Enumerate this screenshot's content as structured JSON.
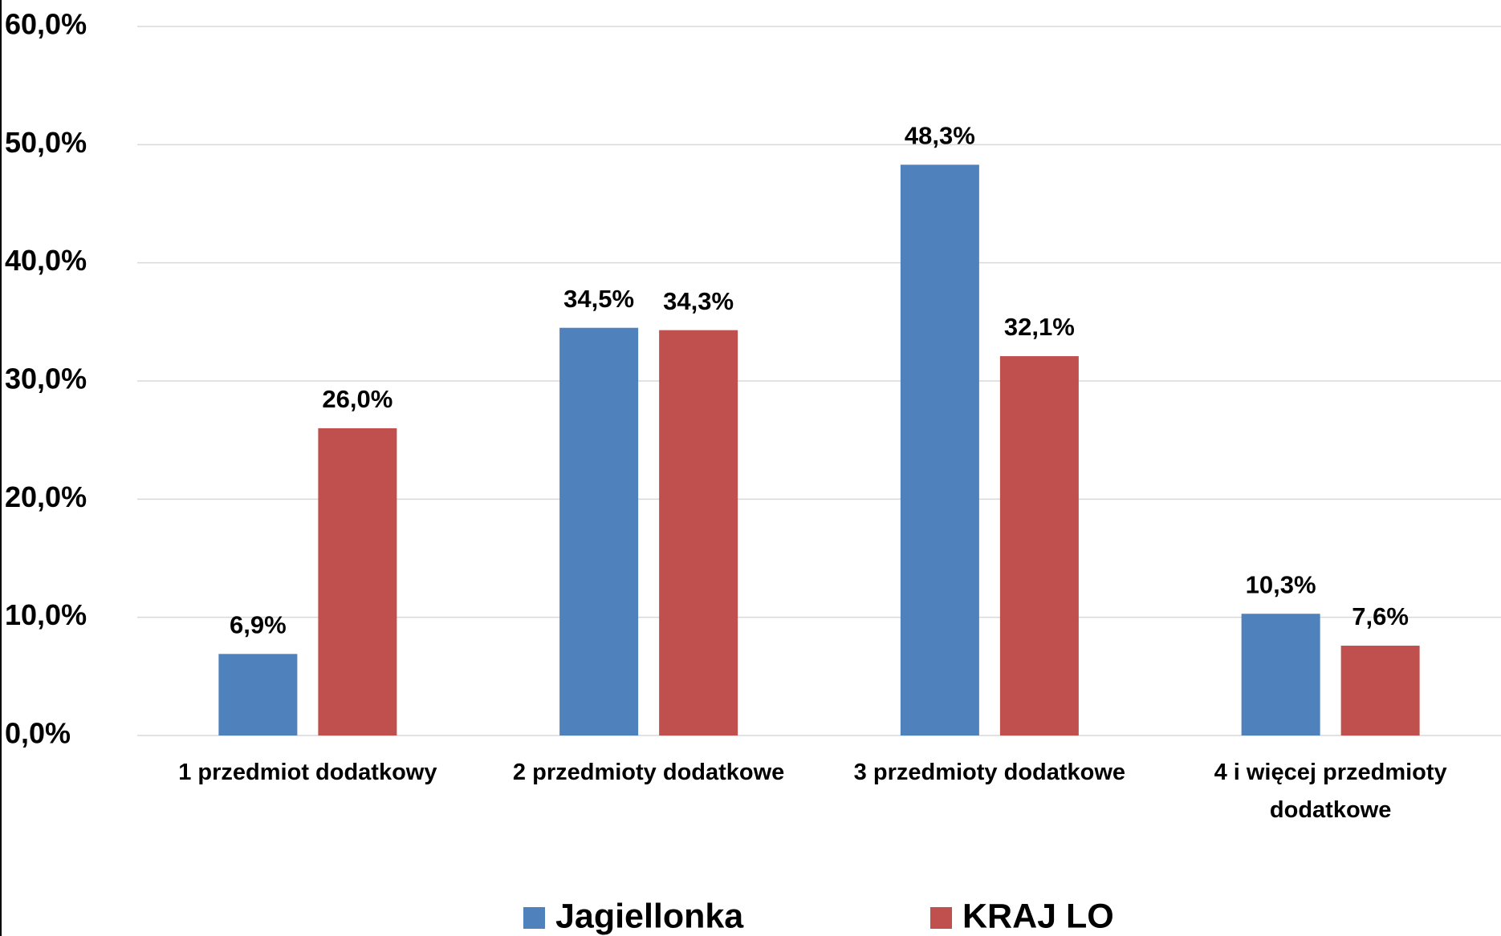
{
  "chart_data": {
    "type": "bar",
    "categories": [
      "1 przedmiot dodatkowy",
      "2 przedmioty dodatkowe",
      "3 przedmioty dodatkowe",
      "4 i więcej przedmioty dodatkowe"
    ],
    "series": [
      {
        "name": "Jagiellonka",
        "color": "#4f81bd",
        "values": [
          6.9,
          34.5,
          48.3,
          10.3
        ],
        "value_labels": [
          "6,9%",
          "34,5%",
          "48,3%",
          "10,3%"
        ]
      },
      {
        "name": "KRAJ LO",
        "color": "#c0504d",
        "values": [
          26.0,
          34.3,
          32.1,
          7.6
        ],
        "value_labels": [
          "26,0%",
          "34,3%",
          "32,1%",
          "7,6%"
        ]
      }
    ],
    "ylim": [
      0,
      60
    ],
    "yticks": [
      {
        "value": 0,
        "label": "0,0%"
      },
      {
        "value": 10,
        "label": "10,0%"
      },
      {
        "value": 20,
        "label": "20,0%"
      },
      {
        "value": 30,
        "label": "30,0%"
      },
      {
        "value": 40,
        "label": "40,0%"
      },
      {
        "value": 50,
        "label": "50,0%"
      },
      {
        "value": 60,
        "label": "60,0%"
      }
    ],
    "grid": true,
    "legend": "bottom"
  }
}
